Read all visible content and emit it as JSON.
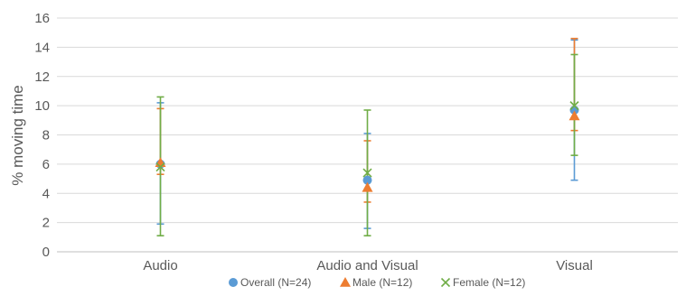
{
  "chart_data": {
    "type": "scatter",
    "title": "",
    "xlabel": "",
    "ylabel": "% moving time",
    "categories": [
      "Audio",
      "Audio and Visual",
      "Visual"
    ],
    "ylim": [
      0,
      16
    ],
    "yticks": [
      0,
      2,
      4,
      6,
      8,
      10,
      12,
      14,
      16
    ],
    "grid": true,
    "legend_position": "bottom",
    "series": [
      {
        "name": "Overall (N=24)",
        "marker": "circle",
        "color": "#5B9BD5",
        "values": [
          6.0,
          4.9,
          9.7
        ],
        "error_low": [
          1.9,
          1.6,
          4.9
        ],
        "error_high": [
          10.2,
          8.1,
          14.5
        ]
      },
      {
        "name": "Male (N=12)",
        "marker": "triangle",
        "color": "#ED7D31",
        "values": [
          6.1,
          4.4,
          9.3
        ],
        "error_low": [
          5.3,
          3.4,
          8.3
        ],
        "error_high": [
          9.8,
          7.6,
          14.6
        ]
      },
      {
        "name": "Female (N=12)",
        "marker": "x",
        "color": "#70AD47",
        "values": [
          5.8,
          5.4,
          10.0
        ],
        "error_low": [
          1.1,
          1.1,
          6.6
        ],
        "error_high": [
          10.6,
          9.7,
          13.5
        ]
      }
    ]
  }
}
